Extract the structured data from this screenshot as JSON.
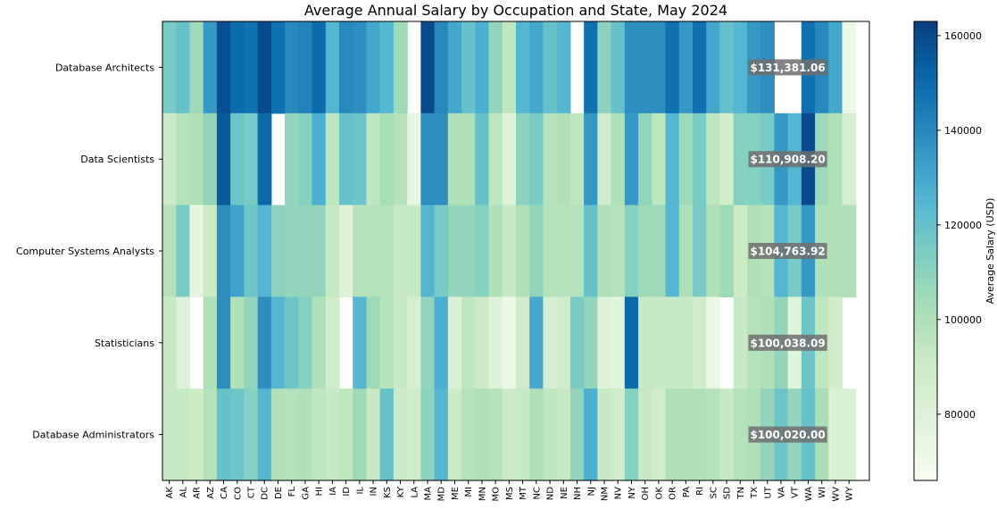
{
  "chart_data": {
    "type": "heatmap",
    "title": "Average Annual Salary by Occupation and State, May 2024",
    "xlabel": "",
    "ylabel": "",
    "colorbar_label": "Average Salary (USD)",
    "colormap": "GnBu",
    "color_range": [
      66000,
      163000
    ],
    "colorbar_ticks": [
      80000,
      100000,
      120000,
      140000,
      160000
    ],
    "states": [
      "AK",
      "AL",
      "AR",
      "AZ",
      "CA",
      "CO",
      "CT",
      "DC",
      "DE",
      "FL",
      "GA",
      "HI",
      "IA",
      "ID",
      "IL",
      "IN",
      "KS",
      "KY",
      "LA",
      "MA",
      "MD",
      "ME",
      "MI",
      "MN",
      "MO",
      "MS",
      "MT",
      "NC",
      "ND",
      "NE",
      "NH",
      "NJ",
      "NM",
      "NV",
      "NY",
      "OH",
      "OK",
      "OR",
      "PA",
      "RI",
      "SC",
      "SD",
      "TN",
      "TX",
      "UT",
      "VA",
      "VT",
      "WA",
      "WI",
      "WV",
      "WY"
    ],
    "occupations": [
      "Database Architects",
      "Data Scientists",
      "Computer Systems Analysts",
      "Statisticians",
      "Database Administrators"
    ],
    "average_labels": [
      "$131,381.06",
      "$110,908.20",
      "$104,763.92",
      "$100,038.09",
      "$100,020.00"
    ],
    "values": [
      [
        115000,
        120000,
        105000,
        135000,
        158000,
        150000,
        148000,
        160000,
        148000,
        140000,
        142000,
        150000,
        125000,
        140000,
        138000,
        130000,
        125000,
        105000,
        null,
        160000,
        140000,
        130000,
        120000,
        128000,
        108000,
        95000,
        125000,
        130000,
        120000,
        125000,
        null,
        148000,
        110000,
        120000,
        138000,
        138000,
        138000,
        148000,
        135000,
        148000,
        130000,
        120000,
        125000,
        135000,
        138000,
        null,
        null,
        148000,
        140000,
        130000,
        72000
      ],
      [
        90000,
        98000,
        100000,
        108000,
        155000,
        118000,
        115000,
        150000,
        null,
        108000,
        112000,
        128000,
        95000,
        120000,
        118000,
        95000,
        102000,
        98000,
        75000,
        138000,
        138000,
        100000,
        100000,
        120000,
        95000,
        80000,
        110000,
        115000,
        98000,
        100000,
        95000,
        135000,
        88000,
        100000,
        135000,
        108000,
        95000,
        125000,
        105000,
        115000,
        95000,
        88000,
        112000,
        112000,
        115000,
        135000,
        125000,
        160000,
        105000,
        100000,
        85000
      ],
      [
        98000,
        115000,
        75000,
        90000,
        138000,
        132000,
        118000,
        125000,
        110000,
        108000,
        108000,
        108000,
        92000,
        80000,
        98000,
        98000,
        98000,
        92000,
        92000,
        125000,
        115000,
        108000,
        108000,
        112000,
        100000,
        92000,
        100000,
        108000,
        98000,
        98000,
        98000,
        120000,
        100000,
        98000,
        112000,
        105000,
        105000,
        125000,
        100000,
        115000,
        100000,
        105000,
        90000,
        100000,
        98000,
        125000,
        115000,
        135000,
        100000,
        100000,
        100000
      ],
      [
        92000,
        80000,
        null,
        100000,
        138000,
        100000,
        108000,
        138000,
        125000,
        118000,
        112000,
        100000,
        88000,
        null,
        125000,
        105000,
        98000,
        92000,
        84000,
        108000,
        128000,
        82000,
        95000,
        90000,
        80000,
        72000,
        88000,
        130000,
        84000,
        88000,
        115000,
        108000,
        80000,
        78000,
        150000,
        92000,
        92000,
        92000,
        92000,
        88000,
        72000,
        null,
        92000,
        98000,
        100000,
        108000,
        78000,
        118000,
        95000,
        88000,
        null
      ],
      [
        92000,
        92000,
        90000,
        98000,
        120000,
        118000,
        112000,
        125000,
        100000,
        98000,
        100000,
        95000,
        92000,
        95000,
        105000,
        92000,
        120000,
        90000,
        88000,
        110000,
        125000,
        90000,
        98000,
        100000,
        98000,
        90000,
        92000,
        100000,
        95000,
        92000,
        108000,
        128000,
        92000,
        88000,
        112000,
        92000,
        88000,
        100000,
        100000,
        100000,
        98000,
        92000,
        98000,
        100000,
        108000,
        118000,
        108000,
        120000,
        102000,
        82000,
        82000
      ]
    ]
  }
}
